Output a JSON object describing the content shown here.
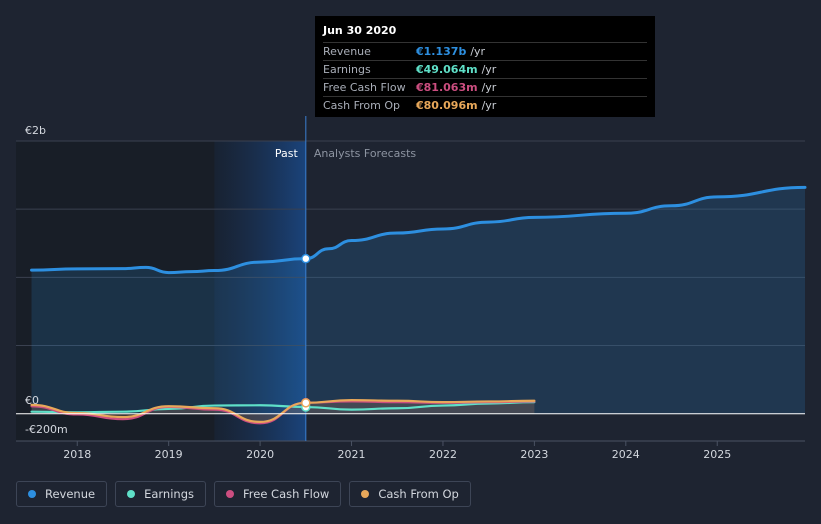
{
  "colors": {
    "background": "#1e2431",
    "revenue": "#2d8fe0",
    "earnings": "#5fe0c8",
    "free_cash_flow": "#cc4e80",
    "cash_from_op": "#e8a85a",
    "grid": "#3a4150"
  },
  "tooltip": {
    "date": "Jun 30 2020",
    "rows": [
      {
        "label": "Revenue",
        "value": "€1.137b",
        "unit": "/yr",
        "color": "#2d8fe0"
      },
      {
        "label": "Earnings",
        "value": "€49.064m",
        "unit": "/yr",
        "color": "#5fe0c8"
      },
      {
        "label": "Free Cash Flow",
        "value": "€81.063m",
        "unit": "/yr",
        "color": "#cc4e80"
      },
      {
        "label": "Cash From Op",
        "value": "€80.096m",
        "unit": "/yr",
        "color": "#e8a85a"
      }
    ]
  },
  "legend": [
    {
      "label": "Revenue",
      "color": "#2d8fe0"
    },
    {
      "label": "Earnings",
      "color": "#5fe0c8"
    },
    {
      "label": "Free Cash Flow",
      "color": "#cc4e80"
    },
    {
      "label": "Cash From Op",
      "color": "#e8a85a"
    }
  ],
  "chart_data": {
    "type": "line",
    "title": "",
    "xlabel": "",
    "ylabel": "",
    "currency": "€",
    "y_unit": "millions",
    "ylim": [
      -200,
      2000
    ],
    "y_tick_labels": [
      {
        "value": 2000,
        "label": "€2b"
      },
      {
        "value": 0,
        "label": "€0"
      },
      {
        "value": -200,
        "label": "-€200m"
      }
    ],
    "x_range": [
      2017.33,
      2025.96
    ],
    "x_ticks": [
      2018,
      2019,
      2020,
      2021,
      2022,
      2023,
      2024,
      2025
    ],
    "divider_x": 2020.5,
    "past_label": "Past",
    "forecast_label": "Analysts Forecasts",
    "highlight_x": 2020.5,
    "series": [
      {
        "name": "Revenue",
        "key": "revenue",
        "x": [
          2017.5,
          2018.0,
          2018.5,
          2018.75,
          2019.0,
          2019.25,
          2019.5,
          2020.0,
          2020.5,
          2020.75,
          2021.0,
          2021.5,
          2022.0,
          2022.5,
          2023.0,
          2024.0,
          2024.5,
          2025.0,
          2025.96
        ],
        "values": [
          1053,
          1062,
          1064,
          1073,
          1035,
          1042,
          1050,
          1112,
          1137,
          1210,
          1270,
          1325,
          1355,
          1405,
          1440,
          1470,
          1525,
          1590,
          1660
        ]
      },
      {
        "name": "Earnings",
        "key": "earnings",
        "x": [
          2017.5,
          2018.0,
          2018.5,
          2019.0,
          2019.5,
          2020.0,
          2020.5,
          2021.0,
          2021.5,
          2022.0,
          2022.5,
          2023.0
        ],
        "values": [
          15,
          10,
          15,
          35,
          60,
          62,
          49,
          30,
          40,
          60,
          75,
          85
        ]
      },
      {
        "name": "Free Cash Flow",
        "key": "free_cash_flow",
        "x": [
          2017.5,
          2018.0,
          2018.5,
          2019.0,
          2019.5,
          2020.0,
          2020.5,
          2021.0,
          2021.5,
          2022.0,
          2022.5,
          2023.0
        ],
        "values": [
          55,
          -5,
          -40,
          50,
          30,
          -70,
          81,
          90,
          85,
          80,
          85,
          90
        ]
      },
      {
        "name": "Cash From Op",
        "key": "cash_from_op",
        "x": [
          2017.5,
          2018.0,
          2018.5,
          2019.0,
          2019.5,
          2020.0,
          2020.5,
          2021.0,
          2021.5,
          2022.0,
          2022.5,
          2023.0
        ],
        "values": [
          65,
          5,
          -25,
          55,
          40,
          -60,
          80,
          100,
          95,
          85,
          90,
          95
        ]
      }
    ]
  }
}
